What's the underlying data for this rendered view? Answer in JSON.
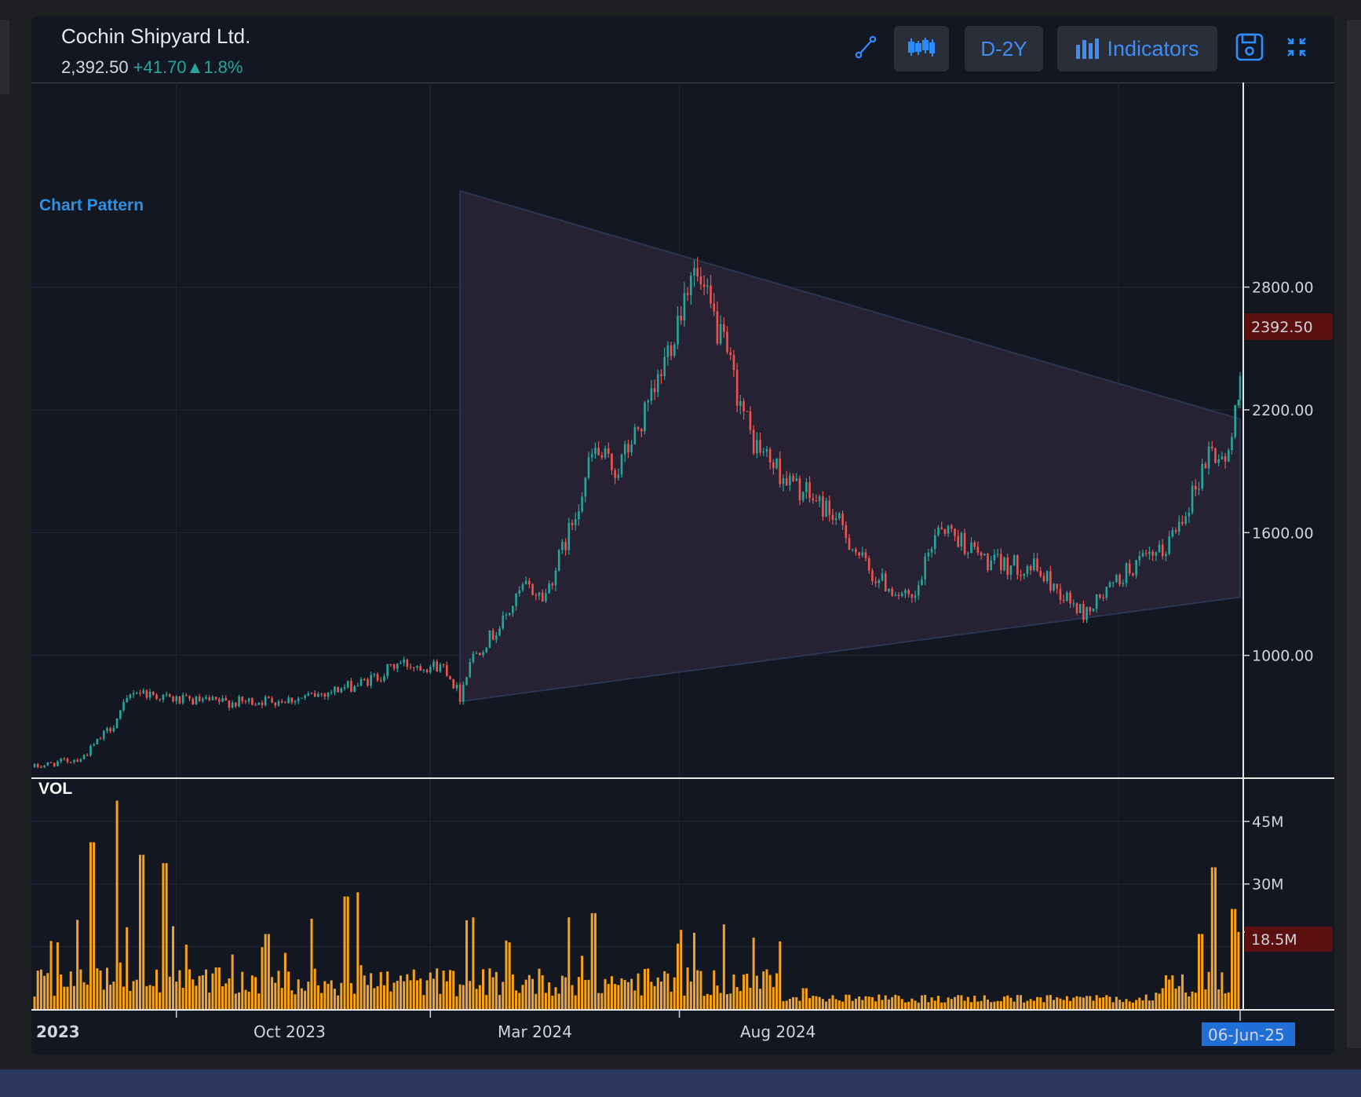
{
  "header": {
    "title": "Cochin Shipyard Ltd.",
    "price": "2,392.50",
    "change": "+41.70▲1.8%"
  },
  "toolbar": {
    "draw_icon": "trendline-draw-icon",
    "chart_type_icon": "candlestick-icon",
    "range_label": "D-2Y",
    "indicators_label": "Indicators",
    "indicators_icon": "bar-chart-icon",
    "save_icon": "save-floppy-icon",
    "fullscreen_icon": "collapse-fullscreen-icon"
  },
  "colors": {
    "background": "#131722",
    "up": "#26a69a",
    "down": "#ef5350",
    "volume": "#f7a21b",
    "pattern_fill": "#2a2436",
    "last_price_bg": "#5c0f0f",
    "date_badge_bg": "#1f6fd6"
  },
  "chart_data": [
    {
      "type": "candlestick",
      "title": "",
      "annotation": "Chart Pattern",
      "pattern": {
        "shape": "symmetrical triangle",
        "upper_line": [
          {
            "x": "2024-02-19",
            "y": 3270
          },
          {
            "x": "2025-06-06",
            "y": 2155
          }
        ],
        "lower_line": [
          {
            "x": "2024-02-19",
            "y": 775
          },
          {
            "x": "2025-06-06",
            "y": 1285
          }
        ]
      },
      "x_ticks": [
        "2023",
        "Oct 2023",
        "Mar 2024",
        "Aug 2024"
      ],
      "x_range": [
        "2023-06-06",
        "2025-06-06"
      ],
      "y_ticks": [
        1000,
        1600,
        2200,
        2800
      ],
      "y_range": [
        400,
        3800
      ],
      "y_axis_position": "right",
      "last_price": 2392.5,
      "last_price_label": "2392.50",
      "last_date_label": "06-Jun-25",
      "grid": true,
      "close_series": [
        {
          "x": "2023-06-06",
          "close": 455
        },
        {
          "x": "2023-07-05",
          "close": 500
        },
        {
          "x": "2023-07-24",
          "close": 665
        },
        {
          "x": "2023-08-05",
          "close": 830
        },
        {
          "x": "2023-09-01",
          "close": 780
        },
        {
          "x": "2023-10-06",
          "close": 770
        },
        {
          "x": "2023-11-15",
          "close": 790
        },
        {
          "x": "2023-12-20",
          "close": 860
        },
        {
          "x": "2024-01-02",
          "close": 905
        },
        {
          "x": "2024-01-12",
          "close": 960
        },
        {
          "x": "2024-02-10",
          "close": 945
        },
        {
          "x": "2024-02-19",
          "close": 800
        },
        {
          "x": "2024-02-25",
          "close": 980
        },
        {
          "x": "2024-03-15",
          "close": 1150
        },
        {
          "x": "2024-03-29",
          "close": 1340
        },
        {
          "x": "2024-04-10",
          "close": 1280
        },
        {
          "x": "2024-04-25",
          "close": 1600
        },
        {
          "x": "2024-05-10",
          "close": 2000
        },
        {
          "x": "2024-05-24",
          "close": 1900
        },
        {
          "x": "2024-06-15",
          "close": 2250
        },
        {
          "x": "2024-07-01",
          "close": 2680
        },
        {
          "x": "2024-07-08",
          "close": 2900
        },
        {
          "x": "2024-07-22",
          "close": 2640
        },
        {
          "x": "2024-08-01",
          "close": 2400
        },
        {
          "x": "2024-08-14",
          "close": 2050
        },
        {
          "x": "2024-09-05",
          "close": 1850
        },
        {
          "x": "2024-10-01",
          "close": 1700
        },
        {
          "x": "2024-10-25",
          "close": 1400
        },
        {
          "x": "2024-11-20",
          "close": 1250
        },
        {
          "x": "2024-12-05",
          "close": 1650
        },
        {
          "x": "2025-01-05",
          "close": 1450
        },
        {
          "x": "2025-02-01",
          "close": 1430
        },
        {
          "x": "2025-03-03",
          "close": 1200
        },
        {
          "x": "2025-04-01",
          "close": 1430
        },
        {
          "x": "2025-04-20",
          "close": 1500
        },
        {
          "x": "2025-05-10",
          "close": 1820
        },
        {
          "x": "2025-05-18",
          "close": 2000
        },
        {
          "x": "2025-05-30",
          "close": 1950
        },
        {
          "x": "2025-06-06",
          "close": 2392.5
        }
      ]
    },
    {
      "type": "bar",
      "series_label": "VOL",
      "y_ticks": [
        "45M",
        "30M"
      ],
      "y_range": [
        0,
        55
      ],
      "unit": "M",
      "last_value_label": "18.5M",
      "volume_series": [
        {
          "x": "2023-06-06",
          "v": 3
        },
        {
          "x": "2023-06-20",
          "v": 16
        },
        {
          "x": "2023-07-11",
          "v": 40
        },
        {
          "x": "2023-07-27",
          "v": 50
        },
        {
          "x": "2023-07-28",
          "v": 48
        },
        {
          "x": "2023-08-10",
          "v": 37
        },
        {
          "x": "2023-08-24",
          "v": 35
        },
        {
          "x": "2023-10-25",
          "v": 18
        },
        {
          "x": "2023-12-12",
          "v": 27
        },
        {
          "x": "2023-12-20",
          "v": 28
        },
        {
          "x": "2024-03-20",
          "v": 16
        },
        {
          "x": "2024-04-25",
          "v": 22
        },
        {
          "x": "2024-05-10",
          "v": 23
        },
        {
          "x": "2024-07-02",
          "v": 19
        },
        {
          "x": "2024-08-16",
          "v": 8
        },
        {
          "x": "2024-09-15",
          "v": 5
        },
        {
          "x": "2025-04-20",
          "v": 5
        },
        {
          "x": "2025-05-13",
          "v": 18
        },
        {
          "x": "2025-05-21",
          "v": 34
        },
        {
          "x": "2025-06-02",
          "v": 24
        },
        {
          "x": "2025-06-06",
          "v": 18.5
        }
      ]
    }
  ]
}
